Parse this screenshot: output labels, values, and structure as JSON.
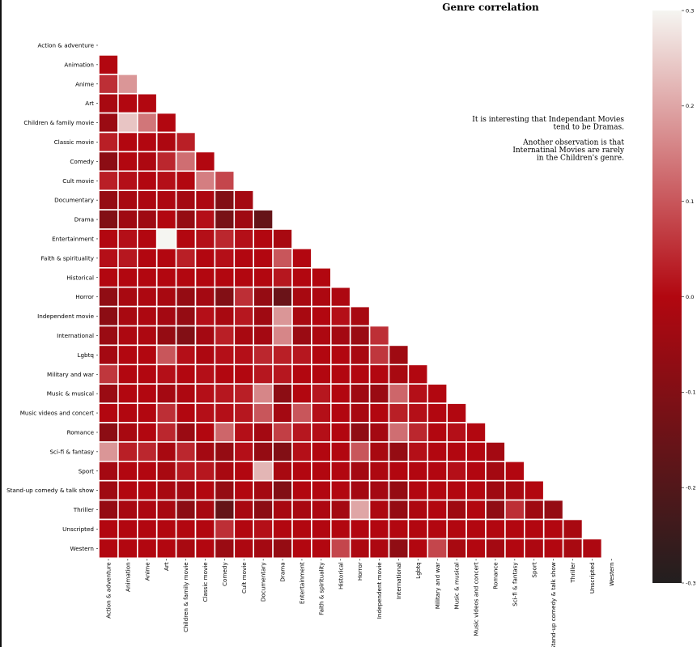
{
  "chart_data": {
    "type": "heatmap",
    "title": "Genre correlation",
    "genres": [
      "Action & adventure",
      "Animation",
      "Anime",
      "Art",
      "Children & family movie",
      "Classic movie",
      "Comedy",
      "Cult movie",
      "Documentary",
      "Drama",
      "Entertainment",
      "Faith & spirituality",
      "Historical",
      "Horror",
      "Independent movie",
      "International",
      "Lgbtq",
      "Military and war",
      "Music & musical",
      "Music videos and concert",
      "Romance",
      "Sci-fi & fantasy",
      "Sport",
      "Stand-up comedy & talk show",
      "Thriller",
      "Unscripted",
      "Western"
    ],
    "lower_triangle": [
      [],
      [
        0.0
      ],
      [
        0.05,
        0.18
      ],
      [
        -0.02,
        0.0,
        0.0
      ],
      [
        -0.05,
        0.24,
        0.14,
        0.0
      ],
      [
        0.03,
        0.0,
        0.0,
        -0.01,
        0.03
      ],
      [
        -0.08,
        0.0,
        -0.01,
        0.04,
        0.13,
        0.0
      ],
      [
        0.03,
        0.01,
        0.0,
        0.01,
        0.0,
        0.15,
        0.08
      ],
      [
        -0.06,
        -0.02,
        -0.01,
        -0.01,
        -0.03,
        -0.01,
        -0.1,
        -0.03
      ],
      [
        -0.1,
        -0.04,
        -0.04,
        0.0,
        -0.06,
        0.01,
        -0.12,
        -0.04,
        -0.16
      ],
      [
        0.0,
        0.01,
        0.0,
        0.3,
        0.0,
        0.01,
        0.04,
        0.01,
        0.0,
        -0.02
      ],
      [
        0.01,
        0.02,
        0.0,
        0.0,
        0.03,
        0.0,
        0.01,
        0.0,
        0.0,
        0.1,
        0.0
      ],
      [
        0.0,
        0.0,
        0.0,
        0.0,
        0.0,
        0.0,
        0.0,
        0.0,
        0.0,
        0.02,
        0.0,
        0.0
      ],
      [
        -0.07,
        -0.02,
        -0.01,
        -0.02,
        -0.06,
        -0.03,
        -0.1,
        0.05,
        -0.06,
        -0.15,
        -0.02,
        -0.01,
        -0.01
      ],
      [
        -0.08,
        -0.02,
        -0.01,
        -0.03,
        -0.06,
        0.01,
        -0.02,
        0.02,
        -0.04,
        0.18,
        -0.02,
        0.0,
        0.01,
        -0.02
      ],
      [
        -0.05,
        -0.01,
        -0.01,
        -0.06,
        -0.1,
        -0.03,
        0.03,
        -0.02,
        -0.03,
        0.16,
        -0.05,
        -0.01,
        -0.03,
        -0.05,
        0.05
      ],
      [
        -0.03,
        0.0,
        0.0,
        0.1,
        0.01,
        -0.01,
        0.01,
        0.01,
        0.04,
        0.03,
        0.02,
        0.0,
        0.0,
        -0.02,
        0.06,
        -0.04
      ],
      [
        0.06,
        0.0,
        0.0,
        0.01,
        0.0,
        0.01,
        0.0,
        0.0,
        0.02,
        0.02,
        0.0,
        0.0,
        0.0,
        0.0,
        0.0,
        -0.02,
        0.0
      ],
      [
        -0.05,
        0.0,
        0.0,
        -0.03,
        -0.01,
        0.01,
        0.02,
        0.03,
        0.16,
        -0.08,
        0.0,
        0.02,
        0.0,
        -0.04,
        -0.05,
        0.12,
        0.01,
        0.0
      ],
      [
        0.0,
        0.0,
        0.0,
        0.05,
        0.0,
        0.01,
        0.01,
        0.02,
        0.1,
        -0.03,
        0.1,
        0.01,
        0.0,
        -0.02,
        0.0,
        0.03,
        0.01,
        0.0,
        0.0
      ],
      [
        -0.08,
        -0.02,
        0.0,
        0.04,
        -0.05,
        0.0,
        0.12,
        0.01,
        -0.03,
        0.07,
        0.02,
        0.01,
        0.0,
        -0.07,
        -0.03,
        0.13,
        0.04,
        0.0,
        0.01,
        0.0
      ],
      [
        0.18,
        0.03,
        0.04,
        -0.02,
        0.04,
        -0.03,
        -0.06,
        0.01,
        -0.06,
        -0.1,
        0.01,
        0.0,
        0.0,
        0.1,
        -0.02,
        -0.06,
        0.01,
        0.0,
        0.0,
        0.0,
        -0.03
      ],
      [
        -0.03,
        0.0,
        0.0,
        -0.02,
        0.02,
        0.02,
        -0.02,
        0.0,
        0.22,
        -0.02,
        0.0,
        0.0,
        0.0,
        -0.03,
        -0.01,
        0.0,
        0.0,
        0.0,
        0.01,
        0.0,
        -0.03,
        0.0
      ],
      [
        -0.04,
        0.0,
        0.0,
        -0.02,
        -0.03,
        0.0,
        -0.06,
        0.0,
        -0.03,
        -0.1,
        0.0,
        0.0,
        0.0,
        -0.03,
        -0.03,
        -0.06,
        0.0,
        0.0,
        0.0,
        0.0,
        -0.04,
        -0.02,
        0.0
      ],
      [
        -0.06,
        -0.02,
        -0.01,
        -0.02,
        -0.08,
        -0.02,
        -0.16,
        -0.02,
        -0.08,
        -0.02,
        -0.02,
        -0.01,
        -0.03,
        0.2,
        -0.01,
        -0.06,
        -0.01,
        0.0,
        -0.04,
        0.0,
        -0.07,
        0.05,
        -0.04,
        -0.06
      ],
      [
        0.0,
        0.0,
        0.0,
        0.0,
        0.0,
        0.0,
        0.05,
        0.0,
        0.01,
        0.0,
        0.0,
        0.0,
        0.0,
        0.0,
        0.0,
        0.0,
        0.0,
        0.0,
        0.0,
        0.0,
        0.0,
        0.0,
        0.0,
        0.0,
        -0.02
      ],
      [
        0.0,
        0.0,
        0.0,
        0.0,
        -0.02,
        0.0,
        -0.05,
        -0.01,
        -0.03,
        -0.06,
        0.0,
        0.0,
        0.08,
        -0.01,
        -0.01,
        -0.07,
        0.0,
        0.08,
        -0.02,
        0.0,
        -0.03,
        0.0,
        -0.01,
        0.0,
        -0.02,
        -0.01
      ]
    ],
    "vmin": -0.3,
    "vmax": 0.3,
    "colorbar_ticks": [
      "0.3",
      "0.2",
      "0.1",
      "0.0",
      "-0.1",
      "-0.2",
      "-0.3"
    ],
    "annotation_lines": [
      "It is interesting that Independant Movies",
      "tend to be Dramas.",
      "",
      "Another observation is that",
      "Internatinal Movies are rarely",
      "in the Children's genre."
    ],
    "colors": {
      "low": "#221f1f",
      "mid": "#b20710",
      "high": "#f5f5f1"
    },
    "grid": false,
    "mask": "upper-triangle"
  }
}
